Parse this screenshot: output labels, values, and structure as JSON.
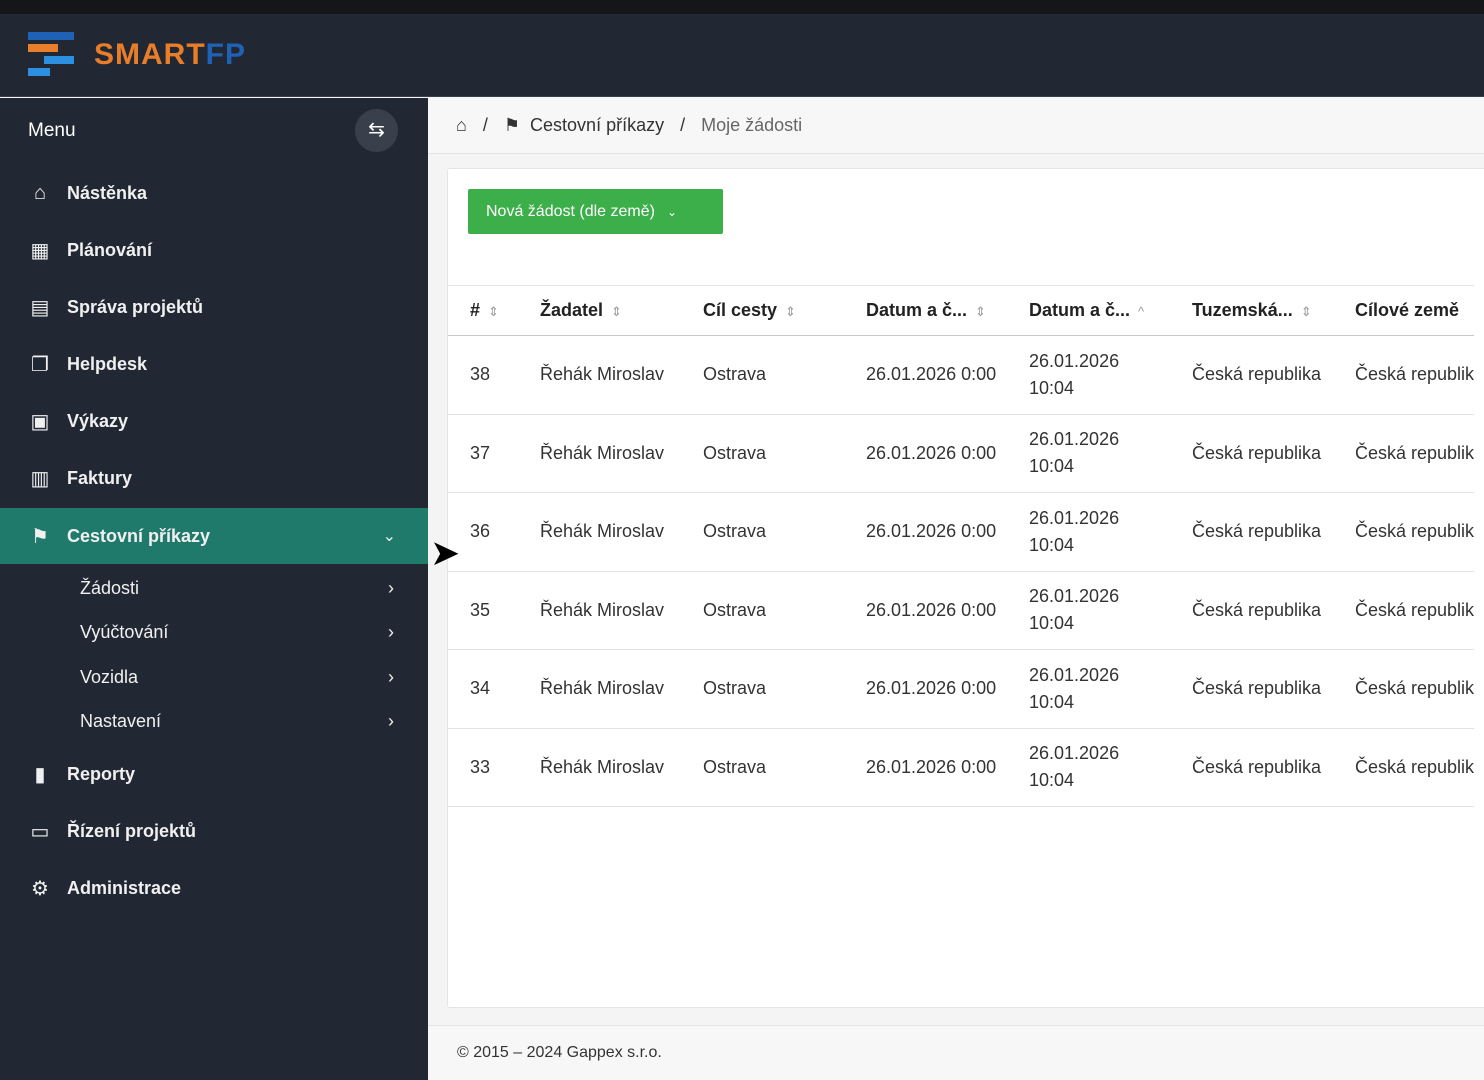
{
  "brand": {
    "logo_text_a": "SMART",
    "logo_text_b": "FP",
    "colors": {
      "orange": "#e87e2a",
      "blue": "#1f62b5"
    }
  },
  "sidebar": {
    "title": "Menu",
    "toggle_icon": "swap-arrows-icon",
    "items": [
      {
        "label": "Nástěnka",
        "icon": "home-icon"
      },
      {
        "label": "Plánování",
        "icon": "calendar-icon"
      },
      {
        "label": "Správa projektů",
        "icon": "document-icon"
      },
      {
        "label": "Helpdesk",
        "icon": "copy-icon"
      },
      {
        "label": "Výkazy",
        "icon": "clipboard-icon"
      },
      {
        "label": "Faktury",
        "icon": "receipt-icon"
      },
      {
        "label": "Cestovní příkazy",
        "icon": "signpost-icon",
        "active": true
      },
      {
        "label": "Reporty",
        "icon": "bar-chart-icon"
      },
      {
        "label": "Řízení projektů",
        "icon": "chat-icon"
      },
      {
        "label": "Administrace",
        "icon": "gears-icon"
      }
    ],
    "subitems": [
      {
        "label": "Žádosti"
      },
      {
        "label": "Vyúčtování"
      },
      {
        "label": "Vozidla"
      },
      {
        "label": "Nastavení"
      }
    ],
    "active_color": "#1f7a6c"
  },
  "breadcrumb": {
    "home": "home-icon",
    "section": "Cestovní příkazy",
    "current": "Moje žádosti",
    "sep": "/"
  },
  "main": {
    "new_button": "Nová žádost (dle země)",
    "columns": [
      "#",
      "Žadatel",
      "Cíl cesty",
      "Datum a č...",
      "Datum a č...",
      "Tuzemská...",
      "Cílové země"
    ],
    "rows": [
      {
        "id": "38",
        "applicant": "Řehák Miroslav",
        "dest": "Ostrava",
        "date1": "26.01.2026 0:00",
        "date2a": "26.01.2026",
        "date2b": "10:04",
        "domestic": "Česká republika",
        "countries": "Česká republik"
      },
      {
        "id": "37",
        "applicant": "Řehák Miroslav",
        "dest": "Ostrava",
        "date1": "26.01.2026 0:00",
        "date2a": "26.01.2026",
        "date2b": "10:04",
        "domestic": "Česká republika",
        "countries": "Česká republik"
      },
      {
        "id": "36",
        "applicant": "Řehák Miroslav",
        "dest": "Ostrava",
        "date1": "26.01.2026 0:00",
        "date2a": "26.01.2026",
        "date2b": "10:04",
        "domestic": "Česká republika",
        "countries": "Česká republik"
      },
      {
        "id": "35",
        "applicant": "Řehák Miroslav",
        "dest": "Ostrava",
        "date1": "26.01.2026 0:00",
        "date2a": "26.01.2026",
        "date2b": "10:04",
        "domestic": "Česká republika",
        "countries": "Česká republik"
      },
      {
        "id": "34",
        "applicant": "Řehák Miroslav",
        "dest": "Ostrava",
        "date1": "26.01.2026 0:00",
        "date2a": "26.01.2026",
        "date2b": "10:04",
        "domestic": "Česká republika",
        "countries": "Česká republik"
      },
      {
        "id": "33",
        "applicant": "Řehák Miroslav",
        "dest": "Ostrava",
        "date1": "26.01.2026 0:00",
        "date2a": "26.01.2026",
        "date2b": "10:04",
        "domestic": "Česká republika",
        "countries": "Česká republik"
      }
    ]
  },
  "footer": {
    "text": "© 2015 – 2024 Gappex s.r.o."
  }
}
